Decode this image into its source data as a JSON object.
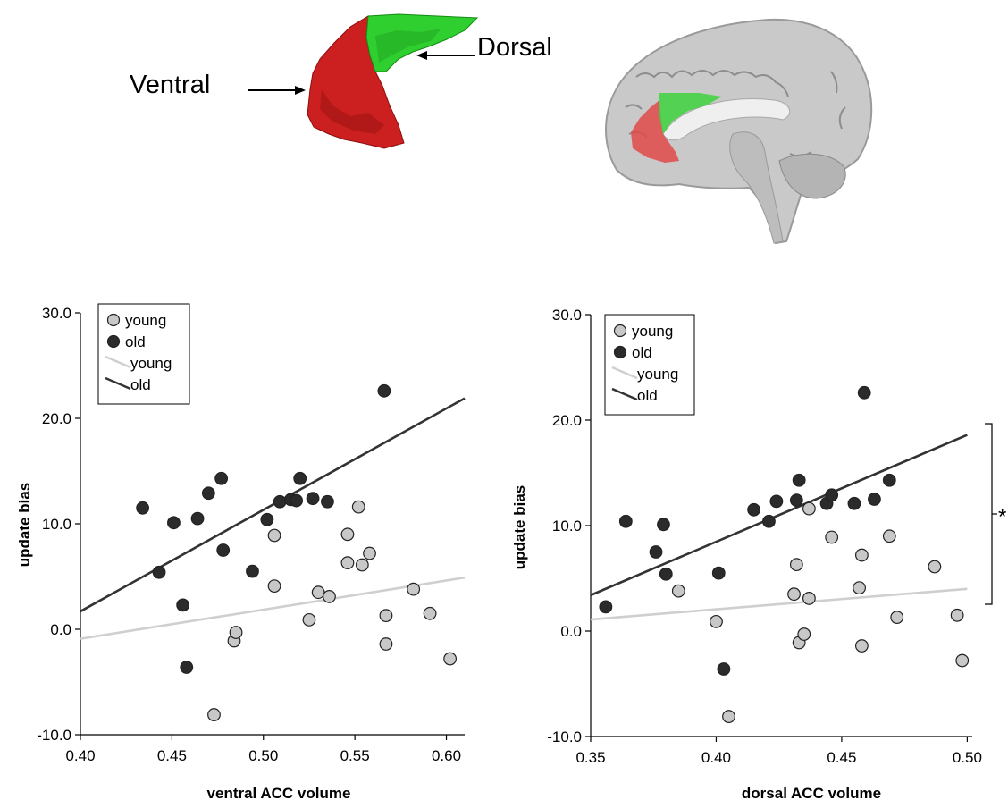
{
  "top": {
    "ventral_label": "Ventral",
    "dorsal_label": "Dorsal",
    "ventral_color": "#d32222",
    "dorsal_color": "#22c422"
  },
  "chart_data": [
    {
      "type": "scatter",
      "xlabel": "ventral ACC volume",
      "ylabel": "update bias",
      "xlim": [
        0.4,
        0.61
      ],
      "ylim": [
        -10.0,
        30.0
      ],
      "xticks": [
        "0.40",
        "0.45",
        "0.50",
        "0.55",
        "0.60"
      ],
      "xtick_values": [
        0.4,
        0.45,
        0.5,
        0.55,
        0.6
      ],
      "yticks": [
        "-10.0",
        "0.0",
        "10.0",
        "20.0",
        "30.0"
      ],
      "ytick_values": [
        -10,
        0,
        10,
        20,
        30
      ],
      "legend": {
        "position": "top-left",
        "entries": [
          "young",
          "old",
          "young",
          "old"
        ]
      },
      "series": [
        {
          "name": "young",
          "kind": "points",
          "color": "#c8c8c8",
          "x": [
            0.473,
            0.484,
            0.485,
            0.506,
            0.506,
            0.525,
            0.53,
            0.536,
            0.546,
            0.546,
            0.552,
            0.554,
            0.558,
            0.567,
            0.567,
            0.582,
            0.591,
            0.602
          ],
          "y": [
            -8.1,
            -1.1,
            -0.3,
            8.9,
            4.1,
            0.9,
            3.5,
            3.1,
            9.0,
            6.3,
            11.6,
            6.1,
            7.2,
            1.3,
            -1.4,
            3.8,
            1.5,
            -2.8
          ]
        },
        {
          "name": "old",
          "kind": "points",
          "color": "#2b2b2b",
          "x": [
            0.434,
            0.443,
            0.451,
            0.456,
            0.458,
            0.464,
            0.47,
            0.477,
            0.478,
            0.494,
            0.502,
            0.509,
            0.515,
            0.518,
            0.52,
            0.527,
            0.535,
            0.566
          ],
          "y": [
            11.5,
            5.4,
            10.1,
            2.3,
            -3.6,
            10.5,
            12.9,
            14.3,
            7.5,
            5.5,
            10.4,
            12.1,
            12.3,
            12.2,
            14.3,
            12.4,
            12.1,
            22.6
          ]
        },
        {
          "name": "young",
          "kind": "fit",
          "color": "#cfcfcf",
          "x": [
            0.4,
            0.61
          ],
          "y": [
            -0.9,
            4.9
          ]
        },
        {
          "name": "old",
          "kind": "fit",
          "color": "#333333",
          "x": [
            0.4,
            0.61
          ],
          "y": [
            1.7,
            21.9
          ]
        }
      ]
    },
    {
      "type": "scatter",
      "xlabel": "dorsal ACC volume",
      "ylabel": "update bias",
      "xlim": [
        0.35,
        0.502
      ],
      "ylim": [
        -10.0,
        30.0
      ],
      "xticks": [
        "0.35",
        "0.40",
        "0.45",
        "0.50"
      ],
      "xtick_values": [
        0.35,
        0.4,
        0.45,
        0.5
      ],
      "yticks": [
        "-10.0",
        "0.0",
        "10.0",
        "20.0",
        "30.0"
      ],
      "ytick_values": [
        -10,
        0,
        10,
        20,
        30
      ],
      "legend": {
        "position": "top-left",
        "entries": [
          "young",
          "old",
          "young",
          "old"
        ]
      },
      "annotation": "*",
      "series": [
        {
          "name": "young",
          "kind": "points",
          "color": "#c8c8c8",
          "x": [
            0.385,
            0.4,
            0.405,
            0.431,
            0.432,
            0.433,
            0.435,
            0.437,
            0.437,
            0.446,
            0.457,
            0.458,
            0.458,
            0.469,
            0.472,
            0.487,
            0.496,
            0.498
          ],
          "y": [
            3.8,
            0.9,
            -8.1,
            3.5,
            6.3,
            -1.1,
            -0.3,
            3.1,
            11.6,
            8.9,
            4.1,
            7.2,
            -1.4,
            9.0,
            1.3,
            6.1,
            1.5,
            -2.8
          ]
        },
        {
          "name": "old",
          "kind": "points",
          "color": "#2b2b2b",
          "x": [
            0.356,
            0.364,
            0.376,
            0.379,
            0.38,
            0.401,
            0.403,
            0.415,
            0.421,
            0.424,
            0.432,
            0.433,
            0.444,
            0.446,
            0.455,
            0.459,
            0.463,
            0.469
          ],
          "y": [
            2.3,
            10.4,
            7.5,
            10.1,
            5.4,
            5.5,
            -3.6,
            11.5,
            10.4,
            12.3,
            12.4,
            14.3,
            12.1,
            12.9,
            12.1,
            22.6,
            12.5,
            14.3
          ]
        },
        {
          "name": "young",
          "kind": "fit",
          "color": "#cfcfcf",
          "x": [
            0.35,
            0.5
          ],
          "y": [
            1.1,
            4.0
          ]
        },
        {
          "name": "old",
          "kind": "fit",
          "color": "#333333",
          "x": [
            0.35,
            0.5
          ],
          "y": [
            3.4,
            18.6
          ]
        }
      ]
    }
  ]
}
